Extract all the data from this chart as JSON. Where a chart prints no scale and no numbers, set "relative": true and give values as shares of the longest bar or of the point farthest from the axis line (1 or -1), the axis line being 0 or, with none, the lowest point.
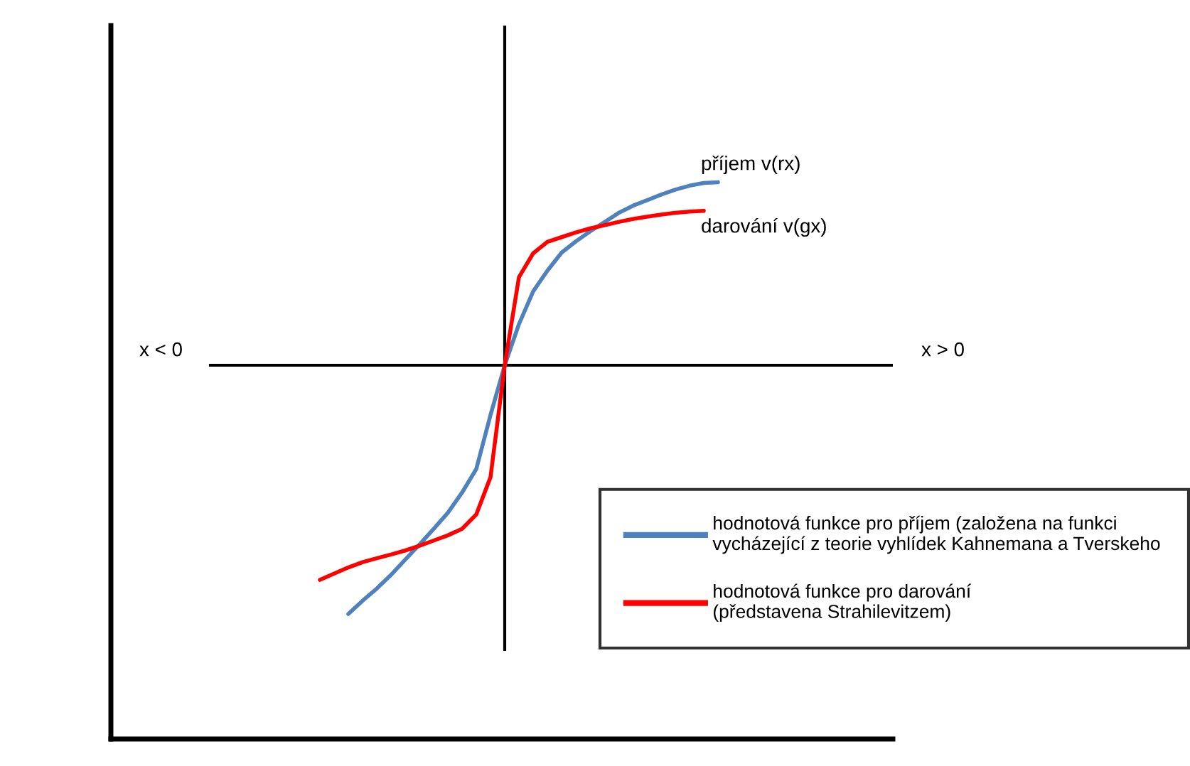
{
  "chart_data": {
    "type": "line",
    "relative": true,
    "legend": "bottom right",
    "marker": "none",
    "line_style": "solid",
    "categories": [
      null,
      null,
      null,
      null,
      null,
      null,
      null,
      null,
      null,
      null,
      null,
      null,
      null,
      null,
      null,
      null,
      null,
      null,
      null,
      null,
      null,
      null,
      null,
      null,
      null,
      null,
      null,
      null,
      null
    ],
    "series": [
      {
        "name": "hodnotová funkce pro příjem (založena na funkci\nvycházející z teorie vyhlídek Kahnemana a Tverskeho",
        "color": "#4f81bd",
        "values": [
          null,
          null,
          -1.0,
          -0.947,
          -0.898,
          -0.843,
          -0.782,
          -0.721,
          -0.658,
          -0.593,
          -0.512,
          -0.417,
          -0.2,
          0,
          0.165,
          0.297,
          0.38,
          0.453,
          0.498,
          0.538,
          0.575,
          0.612,
          0.641,
          0.663,
          0.686,
          0.706,
          0.722,
          0.733,
          0.736
        ]
      },
      {
        "name": "hodnotová funkce pro darování\n(představena Strahilevitzem)",
        "color": "#ff0000",
        "values": [
          -0.863,
          -0.838,
          -0.813,
          -0.792,
          -0.776,
          -0.761,
          -0.745,
          -0.726,
          -0.705,
          -0.684,
          -0.658,
          -0.6,
          -0.45,
          0,
          0.354,
          0.45,
          0.496,
          0.515,
          0.534,
          0.55,
          0.563,
          0.576,
          0.588,
          0.597,
          0.606,
          0.613,
          0.618,
          0.621,
          null
        ]
      }
    ],
    "annotations": [
      "příjem v(rx)",
      "darování v(gx)",
      "x < 0",
      "x > 0"
    ]
  }
}
